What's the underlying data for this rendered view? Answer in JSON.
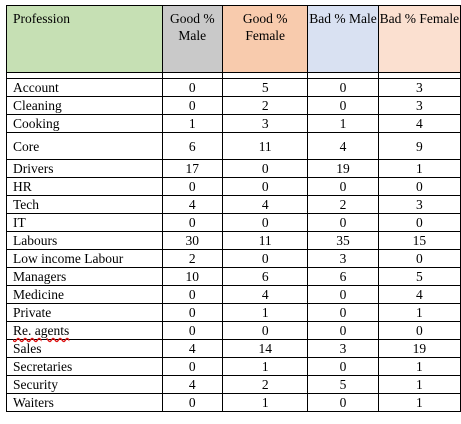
{
  "colors": {
    "profession_header": "#c6e0b4",
    "good_male_header": "#c9c9c9",
    "good_female_header": "#f8cbad",
    "bad_male_header": "#d9e1f2",
    "bad_female_header": "#fbe0d0"
  },
  "table": {
    "headers": [
      "Profession",
      "Good % Male",
      "Good % Female",
      "Bad % Male",
      "Bad % Female"
    ],
    "rows": [
      {
        "profession": "Account",
        "good_male": "0",
        "good_female": "5",
        "bad_male": "0",
        "bad_female": "3"
      },
      {
        "profession": "Cleaning",
        "good_male": "0",
        "good_female": "2",
        "bad_male": "0",
        "bad_female": "3"
      },
      {
        "profession": "Cooking",
        "good_male": "1",
        "good_female": "3",
        "bad_male": "1",
        "bad_female": "4"
      },
      {
        "profession": "Core",
        "good_male": "6",
        "good_female": "11",
        "bad_male": "4",
        "bad_female": "9"
      },
      {
        "profession": "Drivers",
        "good_male": "17",
        "good_female": "0",
        "bad_male": "19",
        "bad_female": "1"
      },
      {
        "profession": "HR",
        "good_male": "0",
        "good_female": "0",
        "bad_male": "0",
        "bad_female": "0"
      },
      {
        "profession": "Tech",
        "good_male": "4",
        "good_female": "4",
        "bad_male": "2",
        "bad_female": "3"
      },
      {
        "profession": "IT",
        "good_male": "0",
        "good_female": "0",
        "bad_male": "0",
        "bad_female": "0"
      },
      {
        "profession": "Labours",
        "good_male": "30",
        "good_female": "11",
        "bad_male": "35",
        "bad_female": "15"
      },
      {
        "profession": "Low income Labour",
        "good_male": "2",
        "good_female": "0",
        "bad_male": "3",
        "bad_female": "0"
      },
      {
        "profession": "Managers",
        "good_male": "10",
        "good_female": "6",
        "bad_male": "6",
        "bad_female": "5"
      },
      {
        "profession": "Medicine",
        "good_male": "0",
        "good_female": "4",
        "bad_male": "0",
        "bad_female": "4"
      },
      {
        "profession": "Private",
        "good_male": "0",
        "good_female": "1",
        "bad_male": "0",
        "bad_female": "1"
      },
      {
        "profession": "Re. agents",
        "good_male": "0",
        "good_female": "0",
        "bad_male": "0",
        "bad_female": "0"
      },
      {
        "profession": "Sales",
        "good_male": "4",
        "good_female": "14",
        "bad_male": "3",
        "bad_female": "19"
      },
      {
        "profession": "Secretaries",
        "good_male": "0",
        "good_female": "1",
        "bad_male": "0",
        "bad_female": "1"
      },
      {
        "profession": "Security",
        "good_male": "4",
        "good_female": "2",
        "bad_male": "5",
        "bad_female": "1"
      },
      {
        "profession": "Waiters",
        "good_male": "0",
        "good_female": "1",
        "bad_male": "0",
        "bad_female": "1"
      }
    ]
  }
}
